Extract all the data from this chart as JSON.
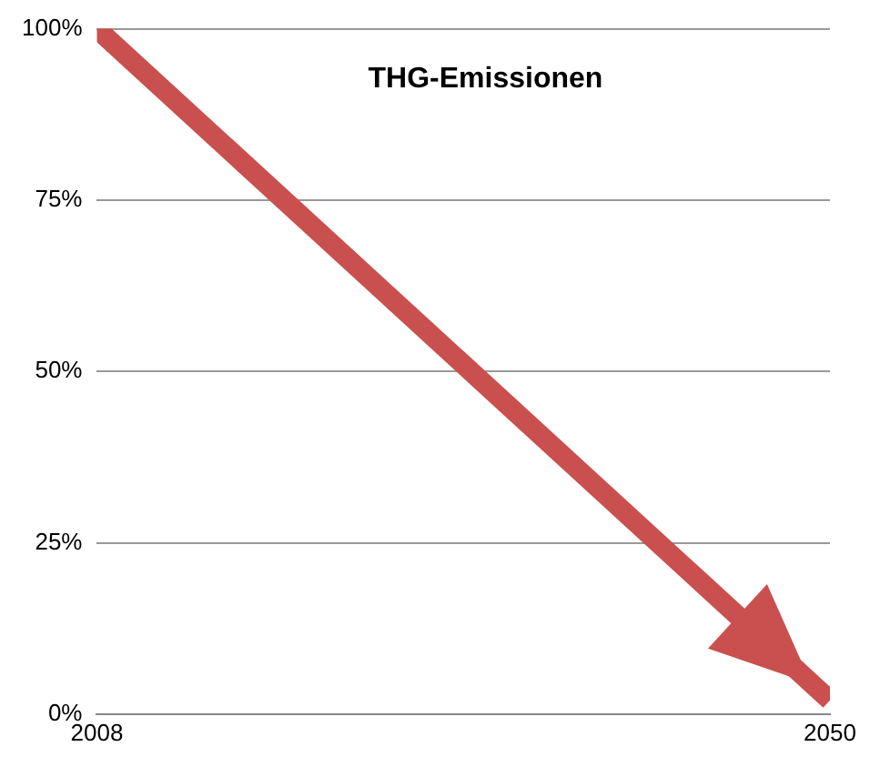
{
  "chart_data": {
    "type": "line",
    "x": [
      2008,
      2050
    ],
    "series": [
      {
        "name": "THG-Emissionen",
        "color": "#c9504e",
        "values": [
          100,
          2
        ]
      }
    ],
    "xlim": [
      2008,
      2050
    ],
    "xticks": [
      2008,
      2050
    ],
    "ylim": [
      0,
      100
    ],
    "yticks": [
      {
        "value": 0,
        "label": "0%"
      },
      {
        "value": 25,
        "label": "25%"
      },
      {
        "value": 50,
        "label": "50%"
      },
      {
        "value": 75,
        "label": "75%"
      },
      {
        "value": 100,
        "label": "100%"
      }
    ],
    "grid": "y",
    "legend": false,
    "marker": "none",
    "line_style": "solid"
  }
}
